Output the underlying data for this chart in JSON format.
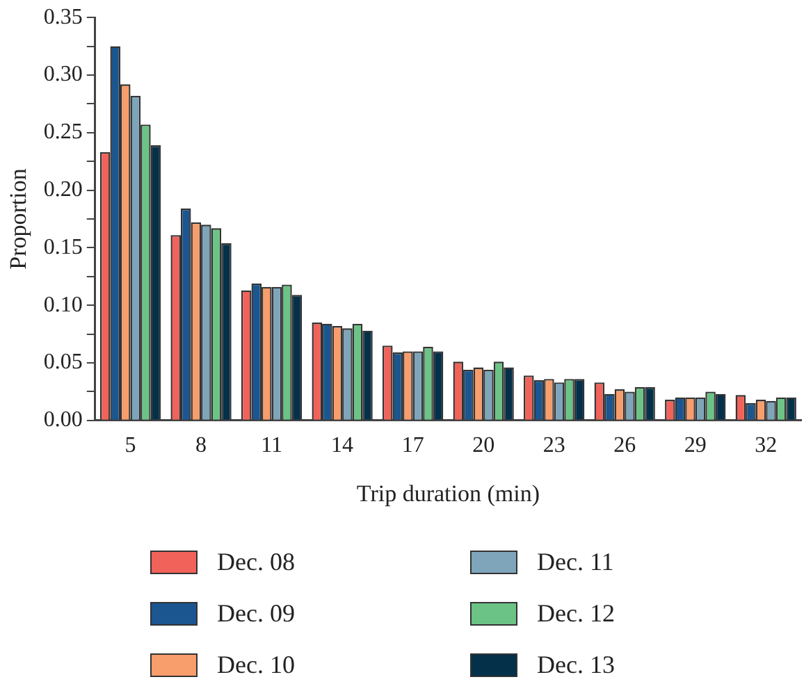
{
  "chart_data": {
    "type": "bar",
    "xlabel": "Trip duration (min)",
    "ylabel": "Proportion",
    "categories": [
      "5",
      "8",
      "11",
      "14",
      "17",
      "20",
      "23",
      "26",
      "29",
      "32"
    ],
    "series": [
      {
        "name": "Dec. 08",
        "color": "#f0625a",
        "values": [
          0.233,
          0.161,
          0.113,
          0.085,
          0.065,
          0.051,
          0.039,
          0.033,
          0.018,
          0.022
        ]
      },
      {
        "name": "Dec. 09",
        "color": "#1b5690",
        "values": [
          0.325,
          0.184,
          0.119,
          0.084,
          0.059,
          0.044,
          0.035,
          0.023,
          0.02,
          0.015
        ]
      },
      {
        "name": "Dec. 10",
        "color": "#f89d6c",
        "values": [
          0.292,
          0.172,
          0.116,
          0.082,
          0.06,
          0.046,
          0.036,
          0.027,
          0.02,
          0.018
        ]
      },
      {
        "name": "Dec. 11",
        "color": "#7ea5ba",
        "values": [
          0.282,
          0.17,
          0.116,
          0.08,
          0.06,
          0.044,
          0.033,
          0.025,
          0.02,
          0.017
        ]
      },
      {
        "name": "Dec. 12",
        "color": "#6cc386",
        "values": [
          0.257,
          0.167,
          0.118,
          0.084,
          0.064,
          0.051,
          0.036,
          0.029,
          0.025,
          0.02
        ]
      },
      {
        "name": "Dec. 13",
        "color": "#04304a",
        "values": [
          0.239,
          0.154,
          0.109,
          0.078,
          0.06,
          0.046,
          0.036,
          0.029,
          0.023,
          0.02
        ]
      }
    ],
    "ylim": [
      0,
      0.35
    ],
    "yticks": [
      {
        "value": 0,
        "label": "0.00"
      },
      {
        "value": 0.025,
        "label": null
      },
      {
        "value": 0.05,
        "label": "0.05"
      },
      {
        "value": 0.075,
        "label": null
      },
      {
        "value": 0.1,
        "label": "0.10"
      },
      {
        "value": 0.125,
        "label": null
      },
      {
        "value": 0.15,
        "label": "0.15"
      },
      {
        "value": 0.175,
        "label": null
      },
      {
        "value": 0.2,
        "label": "0.20"
      },
      {
        "value": 0.225,
        "label": null
      },
      {
        "value": 0.25,
        "label": "0.25"
      },
      {
        "value": 0.275,
        "label": null
      },
      {
        "value": 0.3,
        "label": "0.30"
      },
      {
        "value": 0.325,
        "label": null
      },
      {
        "value": 0.35,
        "label": "0.35"
      }
    ],
    "grid": false,
    "legend": "bottom"
  }
}
